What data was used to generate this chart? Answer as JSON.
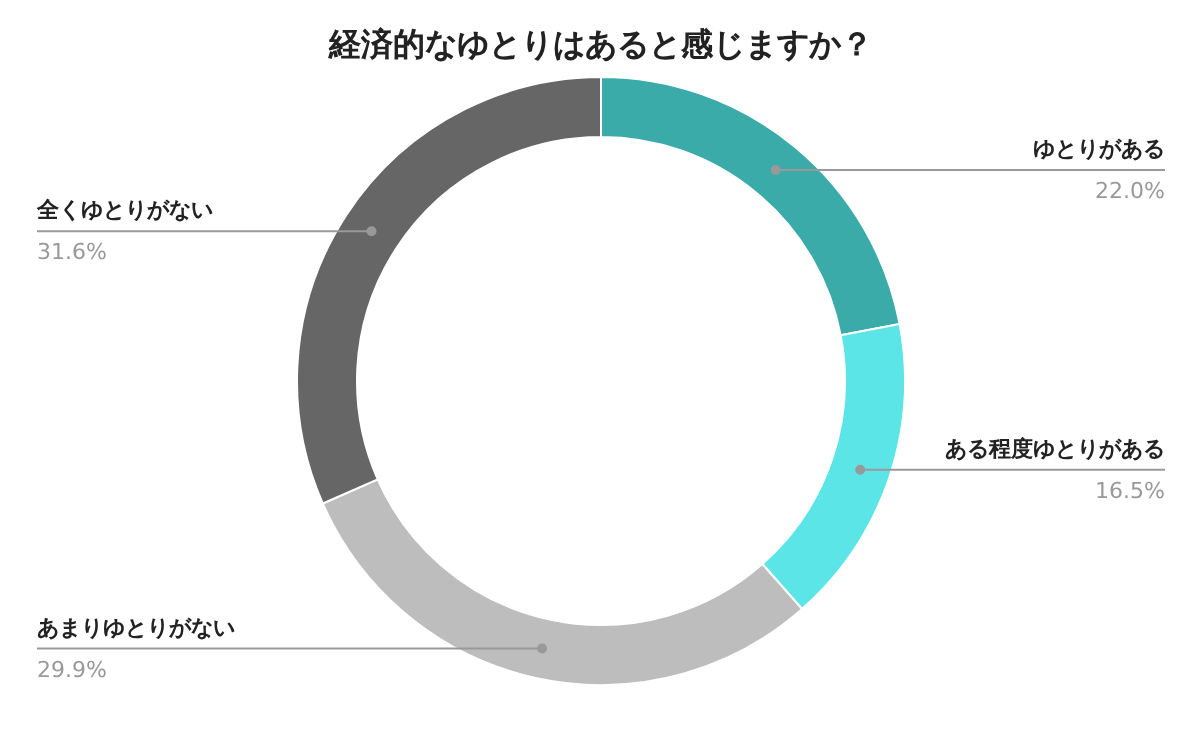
{
  "chart_data": {
    "type": "donut",
    "title": "経済的なゆとりはあると感じますか？",
    "categories": [
      "ゆとりがある",
      "ある程度ゆとりがある",
      "あまりゆとりがない",
      "全くゆとりがない"
    ],
    "values": [
      22.0,
      16.5,
      29.9,
      31.6
    ],
    "colors": [
      "#3aaba9",
      "#5ce5e6",
      "#bdbdbd",
      "#666666"
    ],
    "value_labels": [
      "22.0%",
      "16.5%",
      "29.9%",
      "31.6%"
    ]
  }
}
